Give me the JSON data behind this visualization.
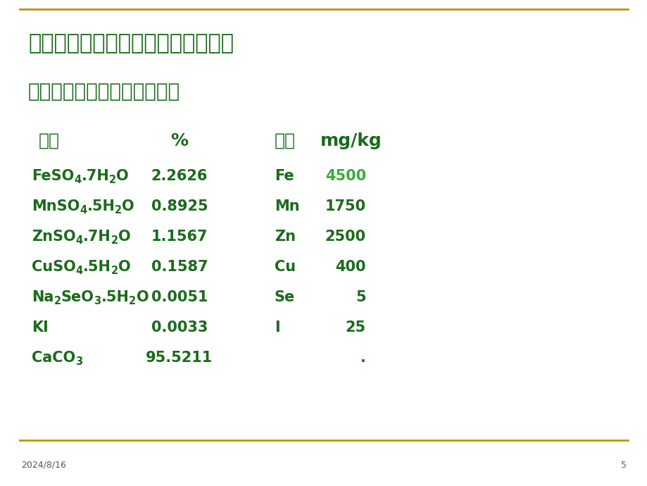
{
  "title1": "第四步，选载体或稀释剂配平配方。",
  "title2": "生长猪微量元素预混料配方：",
  "header_col1": "原料",
  "header_col2": "%",
  "header_col3": "元素",
  "header_col4": "mg/kg",
  "rows": [
    {
      "col1_parts": [
        [
          "FeSO",
          0
        ],
        [
          "4",
          1
        ],
        [
          ".7H",
          0
        ],
        [
          "2",
          1
        ],
        [
          "O",
          0
        ]
      ],
      "col2": "2.2626",
      "col3": "Fe",
      "col4": "4500",
      "col4_highlight": true
    },
    {
      "col1_parts": [
        [
          "MnSO",
          0
        ],
        [
          "4",
          1
        ],
        [
          ".5H",
          0
        ],
        [
          "2",
          1
        ],
        [
          "O",
          0
        ]
      ],
      "col2": "0.8925",
      "col3": "Mn",
      "col4": "1750",
      "col4_highlight": false
    },
    {
      "col1_parts": [
        [
          "ZnSO",
          0
        ],
        [
          "4",
          1
        ],
        [
          ".7H",
          0
        ],
        [
          "2",
          1
        ],
        [
          "O",
          0
        ]
      ],
      "col2": "1.1567",
      "col3": "Zn",
      "col4": "2500",
      "col4_highlight": false
    },
    {
      "col1_parts": [
        [
          "CuSO",
          0
        ],
        [
          "4",
          1
        ],
        [
          ".5H",
          0
        ],
        [
          "2",
          1
        ],
        [
          "O",
          0
        ]
      ],
      "col2": "0.1587",
      "col3": "Cu",
      "col4": "400",
      "col4_highlight": false
    },
    {
      "col1_parts": [
        [
          "Na",
          0
        ],
        [
          "2",
          1
        ],
        [
          "SeO",
          0
        ],
        [
          "3",
          1
        ],
        [
          ".5H",
          0
        ],
        [
          "2",
          1
        ],
        [
          "O",
          0
        ]
      ],
      "col2": "0.0051",
      "col3": "Se",
      "col4": "5",
      "col4_highlight": false
    },
    {
      "col1_parts": [
        [
          "KI",
          0
        ]
      ],
      "col2": "0.0033",
      "col3": "I",
      "col4": "25",
      "col4_highlight": false
    },
    {
      "col1_parts": [
        [
          "CaCO",
          0
        ],
        [
          "3",
          1
        ]
      ],
      "col2": "95.5211",
      "col3": "",
      "col4": ".",
      "col4_highlight": false
    }
  ],
  "footer_date": "2024/8/16",
  "footer_page": "5",
  "bg_color": "#ffffff",
  "border_color": "#b8960c",
  "text_color": "#1a6b1a",
  "highlight_color": "#3aaa3a"
}
